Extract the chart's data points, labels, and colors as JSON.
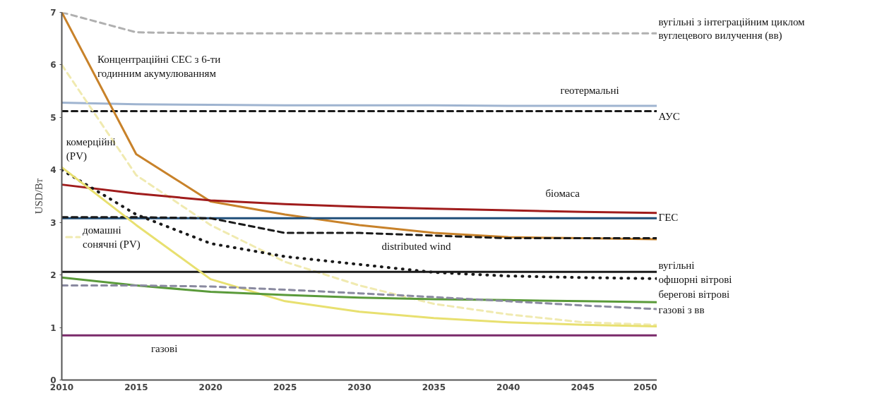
{
  "chart_data": {
    "type": "line",
    "ylabel": "USD/Вт",
    "x": [
      2010,
      2015,
      2020,
      2025,
      2030,
      2035,
      2040,
      2045,
      2050
    ],
    "xlim": [
      2010,
      2050
    ],
    "xticks": [
      2010,
      2015,
      2020,
      2025,
      2030,
      2035,
      2040,
      2045,
      2050
    ],
    "ylim": [
      0,
      7
    ],
    "yticks": [
      0,
      1,
      2,
      3,
      4,
      5,
      6,
      7
    ],
    "grid": false,
    "marker": "none",
    "series": [
      {
        "name": "вугільні з інтеграційним циклом\nвуглецевого вилучення (вв)",
        "color": "#b0b0b0",
        "line_style": "dashed",
        "values": [
          7.0,
          6.62,
          6.6,
          6.6,
          6.6,
          6.6,
          6.6,
          6.6,
          6.6
        ]
      },
      {
        "name": "геотермальні",
        "color": "#9fb4d0",
        "line_style": "solid",
        "values": [
          5.28,
          5.25,
          5.24,
          5.23,
          5.23,
          5.23,
          5.22,
          5.22,
          5.22
        ]
      },
      {
        "name": "АУС",
        "color": "#1a1a1a",
        "line_style": "dashed",
        "values": [
          5.12,
          5.12,
          5.12,
          5.12,
          5.12,
          5.12,
          5.12,
          5.12,
          5.12
        ]
      },
      {
        "name": "домашні\nсонячні (PV)",
        "color": "#f0eab0",
        "line_style": "dashed",
        "values": [
          6.0,
          3.9,
          2.95,
          2.25,
          1.8,
          1.45,
          1.25,
          1.1,
          1.05
        ]
      },
      {
        "name": "Концентраційні СЕС з 6-ти\nгодинним акумулюванням",
        "color": "#c8822a",
        "line_style": "solid",
        "values": [
          7.0,
          4.3,
          3.4,
          3.15,
          2.95,
          2.8,
          2.72,
          2.7,
          2.68
        ]
      },
      {
        "name": "біомаса",
        "color": "#a01c1c",
        "line_style": "solid",
        "values": [
          3.72,
          3.55,
          3.42,
          3.35,
          3.3,
          3.26,
          3.23,
          3.2,
          3.18
        ]
      },
      {
        "name": "ГЕС",
        "color": "#1f4e79",
        "line_style": "solid",
        "values": [
          3.08,
          3.08,
          3.08,
          3.08,
          3.08,
          3.08,
          3.08,
          3.08,
          3.08
        ]
      },
      {
        "name": "distributed wind",
        "color": "#1a1a1a",
        "line_style": "dashed",
        "values": [
          3.1,
          3.1,
          3.08,
          2.8,
          2.8,
          2.75,
          2.7,
          2.7,
          2.7
        ]
      },
      {
        "name": "офшорні вітрові",
        "color": "#1a1a1a",
        "line_style": "dotted",
        "values": [
          4.0,
          3.15,
          2.6,
          2.35,
          2.2,
          2.05,
          1.98,
          1.95,
          1.93
        ]
      },
      {
        "name": "вугільні",
        "color": "#1a1a1a",
        "line_style": "solid",
        "values": [
          2.06,
          2.06,
          2.06,
          2.06,
          2.06,
          2.06,
          2.06,
          2.06,
          2.06
        ]
      },
      {
        "name": "комерційні\n(PV)",
        "color": "#e8e070",
        "line_style": "solid",
        "values": [
          4.05,
          2.95,
          1.92,
          1.5,
          1.3,
          1.18,
          1.1,
          1.05,
          1.02
        ]
      },
      {
        "name": "берегові вітрові",
        "color": "#5a9a3a",
        "line_style": "solid",
        "values": [
          1.95,
          1.8,
          1.68,
          1.62,
          1.57,
          1.54,
          1.52,
          1.5,
          1.48
        ]
      },
      {
        "name": "газові з вв",
        "color": "#8a8aa0",
        "line_style": "dashed",
        "values": [
          1.8,
          1.8,
          1.78,
          1.72,
          1.65,
          1.58,
          1.5,
          1.42,
          1.35
        ]
      },
      {
        "name": "газові",
        "color": "#7a2a6a",
        "line_style": "solid",
        "values": [
          0.85,
          0.85,
          0.85,
          0.85,
          0.85,
          0.85,
          0.85,
          0.85,
          0.85
        ]
      }
    ]
  }
}
